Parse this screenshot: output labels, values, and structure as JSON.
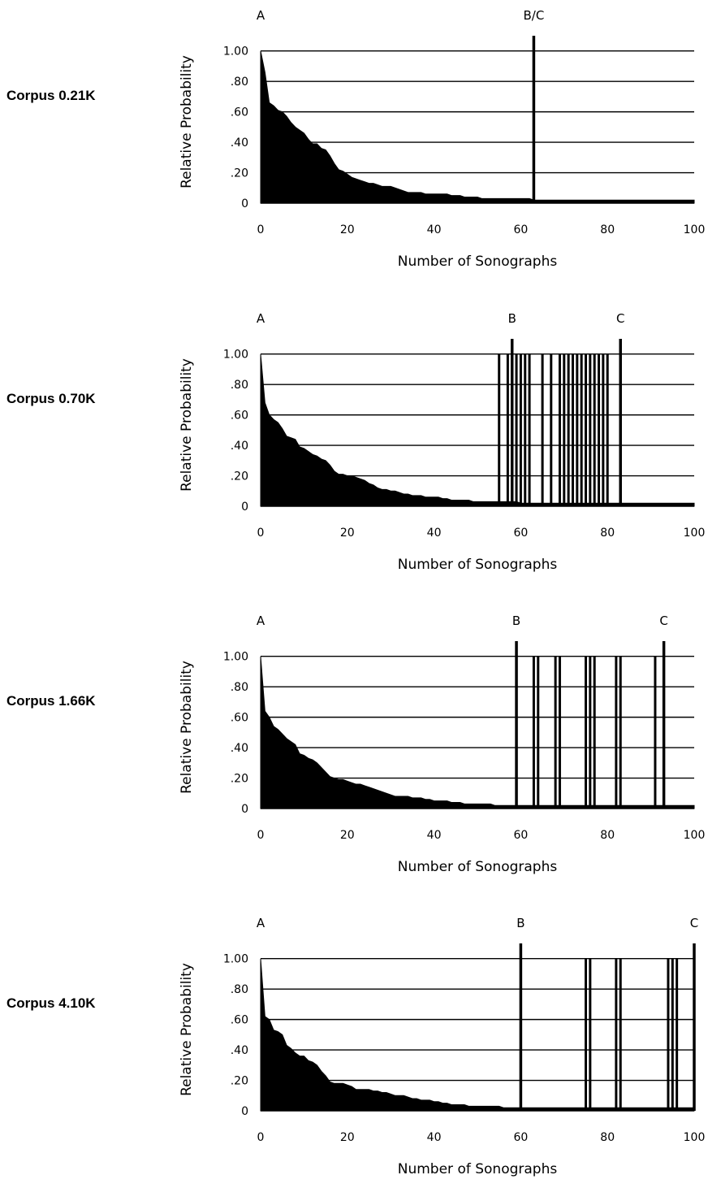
{
  "chart_data": [
    {
      "type": "area",
      "panel_label": "Corpus 0.21K",
      "xlabel": "Number of Sonographs",
      "ylabel": "Relative Probability",
      "xlim": [
        0,
        100
      ],
      "ylim": [
        0,
        1.1
      ],
      "x_ticks": [
        0,
        20,
        40,
        60,
        80,
        100
      ],
      "x_tick_labels": [
        "0",
        "20",
        "40",
        "60",
        "80",
        "100"
      ],
      "y_ticks": [
        0,
        0.2,
        0.4,
        0.6,
        0.8,
        1.0
      ],
      "y_tick_labels": [
        "0",
        ".20",
        ".40",
        ".60",
        ".80",
        "1.00"
      ],
      "grid": "horizontal",
      "curve": {
        "x": [
          0,
          1,
          2,
          3,
          4,
          5,
          6,
          7,
          8,
          9,
          10,
          11,
          12,
          13,
          14,
          15,
          16,
          17,
          18,
          19,
          20,
          21,
          22,
          23,
          24,
          25,
          26,
          27,
          28,
          29,
          30,
          31,
          32,
          33,
          34,
          35,
          36,
          37,
          38,
          39,
          40,
          41,
          42,
          43,
          44,
          45,
          46,
          47,
          48,
          49,
          50,
          51,
          52,
          53,
          54,
          55,
          56,
          57,
          58,
          59,
          60,
          61,
          62,
          63,
          64,
          65,
          66,
          67,
          68,
          69,
          70,
          71,
          72,
          73,
          74,
          75,
          76,
          77,
          78,
          79,
          80,
          81,
          82,
          83,
          84,
          85,
          86,
          87,
          88,
          89,
          90,
          91,
          92,
          93,
          94,
          95,
          96,
          97,
          98,
          99,
          100
        ],
        "y": [
          1.0,
          0.86,
          0.66,
          0.64,
          0.61,
          0.6,
          0.57,
          0.53,
          0.5,
          0.48,
          0.46,
          0.42,
          0.39,
          0.39,
          0.36,
          0.35,
          0.31,
          0.26,
          0.22,
          0.21,
          0.19,
          0.17,
          0.16,
          0.15,
          0.14,
          0.13,
          0.13,
          0.12,
          0.11,
          0.11,
          0.11,
          0.1,
          0.09,
          0.08,
          0.07,
          0.07,
          0.07,
          0.07,
          0.06,
          0.06,
          0.06,
          0.06,
          0.06,
          0.06,
          0.05,
          0.05,
          0.05,
          0.04,
          0.04,
          0.04,
          0.04,
          0.03,
          0.03,
          0.03,
          0.03,
          0.03,
          0.03,
          0.03,
          0.03,
          0.03,
          0.03,
          0.03,
          0.03,
          0.02,
          0.02,
          0.02,
          0.02,
          0.02,
          0.02,
          0.02,
          0.02,
          0.02,
          0.02,
          0.02,
          0.02,
          0.02,
          0.02,
          0.02,
          0.02,
          0.02,
          0.02,
          0.02,
          0.02,
          0.02,
          0.02,
          0.02,
          0.02,
          0.02,
          0.02,
          0.02,
          0.02,
          0.02,
          0.02,
          0.02,
          0.02,
          0.02,
          0.02,
          0.02,
          0.02,
          0.02,
          0.02
        ]
      },
      "spikes": [],
      "markers": [
        {
          "label": "A",
          "x": 0
        },
        {
          "label": "B/C",
          "x": 63
        }
      ]
    },
    {
      "type": "area",
      "panel_label": "Corpus 0.70K",
      "xlabel": "Number of Sonographs",
      "ylabel": "Relative Probability",
      "xlim": [
        0,
        100
      ],
      "ylim": [
        0,
        1.1
      ],
      "x_ticks": [
        0,
        20,
        40,
        60,
        80,
        100
      ],
      "x_tick_labels": [
        "0",
        "20",
        "40",
        "60",
        "80",
        "100"
      ],
      "y_ticks": [
        0,
        0.2,
        0.4,
        0.6,
        0.8,
        1.0
      ],
      "y_tick_labels": [
        "0",
        ".20",
        ".40",
        ".60",
        ".80",
        "1.00"
      ],
      "grid": "horizontal",
      "curve": {
        "x": [
          0,
          1,
          2,
          3,
          4,
          5,
          6,
          7,
          8,
          9,
          10,
          11,
          12,
          13,
          14,
          15,
          16,
          17,
          18,
          19,
          20,
          21,
          22,
          23,
          24,
          25,
          26,
          27,
          28,
          29,
          30,
          31,
          32,
          33,
          34,
          35,
          36,
          37,
          38,
          39,
          40,
          41,
          42,
          43,
          44,
          45,
          46,
          47,
          48,
          49,
          50,
          51,
          52,
          53,
          54,
          55,
          56,
          57,
          58,
          59,
          60,
          61,
          62,
          63,
          64,
          65,
          66,
          67,
          68,
          69,
          70,
          71,
          72,
          73,
          74,
          75,
          76,
          77,
          78,
          79,
          80,
          81,
          82,
          83,
          84,
          85,
          86,
          87,
          88,
          89,
          90,
          91,
          92,
          93,
          94,
          95,
          96,
          97,
          98,
          99,
          100
        ],
        "y": [
          1.0,
          0.68,
          0.6,
          0.57,
          0.55,
          0.51,
          0.46,
          0.45,
          0.44,
          0.39,
          0.38,
          0.36,
          0.34,
          0.33,
          0.31,
          0.3,
          0.27,
          0.23,
          0.21,
          0.21,
          0.2,
          0.2,
          0.19,
          0.18,
          0.17,
          0.15,
          0.14,
          0.12,
          0.11,
          0.11,
          0.1,
          0.1,
          0.09,
          0.08,
          0.08,
          0.07,
          0.07,
          0.07,
          0.06,
          0.06,
          0.06,
          0.06,
          0.05,
          0.05,
          0.04,
          0.04,
          0.04,
          0.04,
          0.04,
          0.03,
          0.03,
          0.03,
          0.03,
          0.03,
          0.03,
          0.03,
          0.03,
          0.03,
          0.03,
          0.03,
          0.02,
          0.02,
          0.02,
          0.02,
          0.02,
          0.02,
          0.02,
          0.02,
          0.02,
          0.02,
          0.02,
          0.02,
          0.02,
          0.02,
          0.02,
          0.02,
          0.02,
          0.02,
          0.02,
          0.02,
          0.02,
          0.02,
          0.02,
          0.02,
          0.02,
          0.02,
          0.02,
          0.02,
          0.02,
          0.02,
          0.02,
          0.02,
          0.02,
          0.02,
          0.02,
          0.02,
          0.02,
          0.02,
          0.02,
          0.02,
          0.02
        ]
      },
      "spikes": [
        55,
        57,
        59,
        60,
        61,
        62,
        65,
        67,
        69,
        70,
        71,
        72,
        73,
        74,
        75,
        76,
        77,
        78,
        79,
        80
      ],
      "markers": [
        {
          "label": "B",
          "x": 58
        },
        {
          "label": "C",
          "x": 83
        },
        {
          "label": "A",
          "x": 0
        }
      ]
    },
    {
      "type": "area",
      "panel_label": "Corpus 1.66K",
      "xlabel": "Number of Sonographs",
      "ylabel": "Relative Probability",
      "xlim": [
        0,
        100
      ],
      "ylim": [
        0,
        1.1
      ],
      "x_ticks": [
        0,
        20,
        40,
        60,
        80,
        100
      ],
      "x_tick_labels": [
        "0",
        "20",
        "40",
        "60",
        "80",
        "100"
      ],
      "y_ticks": [
        0,
        0.2,
        0.4,
        0.6,
        0.8,
        1.0
      ],
      "y_tick_labels": [
        "0",
        ".20",
        ".40",
        ".60",
        ".80",
        "1.00"
      ],
      "grid": "horizontal",
      "curve": {
        "x": [
          0,
          1,
          2,
          3,
          4,
          5,
          6,
          7,
          8,
          9,
          10,
          11,
          12,
          13,
          14,
          15,
          16,
          17,
          18,
          19,
          20,
          21,
          22,
          23,
          24,
          25,
          26,
          27,
          28,
          29,
          30,
          31,
          32,
          33,
          34,
          35,
          36,
          37,
          38,
          39,
          40,
          41,
          42,
          43,
          44,
          45,
          46,
          47,
          48,
          49,
          50,
          51,
          52,
          53,
          54,
          55,
          56,
          57,
          58,
          59,
          60,
          61,
          62,
          63,
          64,
          65,
          66,
          67,
          68,
          69,
          70,
          71,
          72,
          73,
          74,
          75,
          76,
          77,
          78,
          79,
          80,
          81,
          82,
          83,
          84,
          85,
          86,
          87,
          88,
          89,
          90,
          91,
          92,
          93,
          94,
          95,
          96,
          97,
          98,
          99,
          100
        ],
        "y": [
          1.0,
          0.64,
          0.6,
          0.54,
          0.52,
          0.49,
          0.46,
          0.44,
          0.42,
          0.36,
          0.35,
          0.33,
          0.32,
          0.3,
          0.27,
          0.24,
          0.21,
          0.2,
          0.19,
          0.19,
          0.18,
          0.17,
          0.16,
          0.16,
          0.15,
          0.14,
          0.13,
          0.12,
          0.11,
          0.1,
          0.09,
          0.08,
          0.08,
          0.08,
          0.08,
          0.07,
          0.07,
          0.07,
          0.06,
          0.06,
          0.05,
          0.05,
          0.05,
          0.05,
          0.04,
          0.04,
          0.04,
          0.03,
          0.03,
          0.03,
          0.03,
          0.03,
          0.03,
          0.03,
          0.02,
          0.02,
          0.02,
          0.02,
          0.02,
          0.02,
          0.02,
          0.02,
          0.02,
          0.02,
          0.02,
          0.02,
          0.02,
          0.02,
          0.02,
          0.02,
          0.02,
          0.02,
          0.02,
          0.02,
          0.02,
          0.02,
          0.02,
          0.02,
          0.02,
          0.02,
          0.02,
          0.02,
          0.02,
          0.02,
          0.02,
          0.02,
          0.02,
          0.02,
          0.02,
          0.02,
          0.02,
          0.02,
          0.02,
          0.02,
          0.02,
          0.02,
          0.02,
          0.02,
          0.02,
          0.02,
          0.02
        ]
      },
      "spikes": [
        63,
        64,
        68,
        69,
        75,
        76,
        77,
        82,
        83,
        91
      ],
      "markers": [
        {
          "label": "B",
          "x": 59
        },
        {
          "label": "C",
          "x": 93
        },
        {
          "label": "A",
          "x": 0
        }
      ]
    },
    {
      "type": "area",
      "panel_label": "Corpus 4.10K",
      "xlabel": "Number of Sonographs",
      "ylabel": "Relative Probability",
      "xlim": [
        0,
        100
      ],
      "ylim": [
        0,
        1.1
      ],
      "x_ticks": [
        0,
        20,
        40,
        60,
        80,
        100
      ],
      "x_tick_labels": [
        "0",
        "20",
        "40",
        "60",
        "80",
        "100"
      ],
      "y_ticks": [
        0,
        0.2,
        0.4,
        0.6,
        0.8,
        1.0
      ],
      "y_tick_labels": [
        "0",
        ".20",
        ".40",
        ".60",
        ".80",
        "1.00"
      ],
      "grid": "horizontal",
      "curve": {
        "x": [
          0,
          1,
          2,
          3,
          4,
          5,
          6,
          7,
          8,
          9,
          10,
          11,
          12,
          13,
          14,
          15,
          16,
          17,
          18,
          19,
          20,
          21,
          22,
          23,
          24,
          25,
          26,
          27,
          28,
          29,
          30,
          31,
          32,
          33,
          34,
          35,
          36,
          37,
          38,
          39,
          40,
          41,
          42,
          43,
          44,
          45,
          46,
          47,
          48,
          49,
          50,
          51,
          52,
          53,
          54,
          55,
          56,
          57,
          58,
          59,
          60,
          61,
          62,
          63,
          64,
          65,
          66,
          67,
          68,
          69,
          70,
          71,
          72,
          73,
          74,
          75,
          76,
          77,
          78,
          79,
          80,
          81,
          82,
          83,
          84,
          85,
          86,
          87,
          88,
          89,
          90,
          91,
          92,
          93,
          94,
          95,
          96,
          97,
          98,
          99,
          100
        ],
        "y": [
          1.0,
          0.62,
          0.6,
          0.53,
          0.52,
          0.5,
          0.43,
          0.41,
          0.38,
          0.36,
          0.36,
          0.33,
          0.32,
          0.3,
          0.26,
          0.23,
          0.19,
          0.18,
          0.18,
          0.18,
          0.17,
          0.16,
          0.14,
          0.14,
          0.14,
          0.14,
          0.13,
          0.13,
          0.12,
          0.12,
          0.11,
          0.1,
          0.1,
          0.1,
          0.09,
          0.08,
          0.08,
          0.07,
          0.07,
          0.07,
          0.06,
          0.06,
          0.05,
          0.05,
          0.04,
          0.04,
          0.04,
          0.04,
          0.03,
          0.03,
          0.03,
          0.03,
          0.03,
          0.03,
          0.03,
          0.03,
          0.02,
          0.02,
          0.02,
          0.02,
          0.02,
          0.02,
          0.02,
          0.02,
          0.02,
          0.02,
          0.02,
          0.02,
          0.02,
          0.02,
          0.02,
          0.02,
          0.02,
          0.02,
          0.02,
          0.02,
          0.02,
          0.02,
          0.02,
          0.02,
          0.02,
          0.02,
          0.02,
          0.02,
          0.02,
          0.02,
          0.02,
          0.02,
          0.02,
          0.02,
          0.02,
          0.02,
          0.02,
          0.02,
          0.02,
          0.02,
          0.02,
          0.02,
          0.02,
          0.02,
          0.02
        ]
      },
      "spikes": [
        75,
        76,
        82,
        83,
        94,
        95,
        96
      ],
      "markers": [
        {
          "label": "B",
          "x": 60
        },
        {
          "label": "C",
          "x": 100
        },
        {
          "label": "A",
          "x": 0
        }
      ]
    }
  ]
}
